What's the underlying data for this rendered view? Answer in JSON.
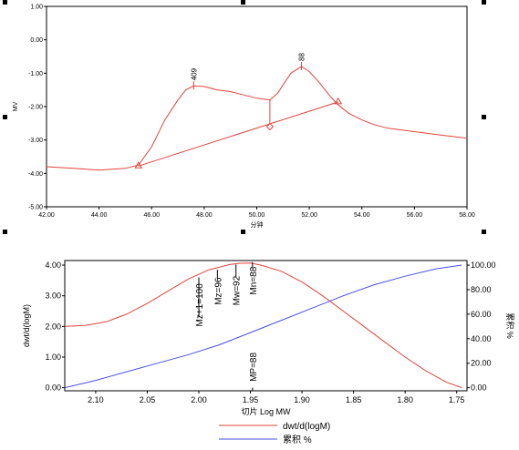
{
  "chart_data": [
    {
      "type": "line",
      "title": "",
      "xlabel": "分钟",
      "ylabel": "MV",
      "xlim": [
        42.0,
        58.0
      ],
      "ylim": [
        -5.0,
        1.0
      ],
      "x_ticks": [
        "42.00",
        "44.00",
        "46.00",
        "48.00",
        "50.00",
        "52.00",
        "54.00",
        "56.00",
        "58.00"
      ],
      "y_ticks": [
        "1.00",
        "0.00",
        "-1.00",
        "-2.00",
        "-3.00",
        "-4.00",
        "-5.00"
      ],
      "grid": false,
      "series": [
        {
          "color": "#e0443c",
          "x": [
            42.0,
            43.0,
            44.0,
            45.0,
            45.5,
            46.0,
            46.5,
            47.0,
            47.3,
            47.6,
            48.0,
            48.5,
            49.0,
            49.5,
            50.0,
            50.5,
            50.8,
            51.0,
            51.3,
            51.7,
            52.0,
            52.4,
            52.8,
            53.1,
            53.5,
            54.0,
            54.5,
            55.0,
            56.0,
            57.0,
            58.0
          ],
          "y": [
            -3.8,
            -3.85,
            -3.9,
            -3.85,
            -3.75,
            -3.2,
            -2.4,
            -1.8,
            -1.5,
            -1.38,
            -1.4,
            -1.5,
            -1.55,
            -1.65,
            -1.75,
            -1.8,
            -1.6,
            -1.35,
            -1.0,
            -0.8,
            -0.95,
            -1.3,
            -1.7,
            -1.95,
            -2.2,
            -2.4,
            -2.55,
            -2.65,
            -2.75,
            -2.85,
            -2.95
          ]
        }
      ],
      "baseline": {
        "x": [
          45.5,
          53.1
        ],
        "y": [
          -3.78,
          -1.86
        ]
      },
      "peak_labels": [
        {
          "text": "409",
          "x": 47.6,
          "y": -1.38
        },
        {
          "text": "88",
          "x": 51.7,
          "y": -0.8
        }
      ],
      "split_line_x": 50.5,
      "markers": [
        {
          "shape": "triangle",
          "x": 45.5,
          "y": -3.78
        },
        {
          "shape": "diamond",
          "x": 50.5,
          "y": -2.6
        },
        {
          "shape": "triangle",
          "x": 53.1,
          "y": -1.86
        }
      ]
    },
    {
      "type": "line",
      "title": "",
      "xlabel": "切片 Log MW",
      "ylabel": "dwt/d(logM)",
      "ylabel_right": "累积 %",
      "xlim": [
        2.13,
        1.74
      ],
      "ylim": [
        -0.1,
        4.15
      ],
      "ylim_right": [
        -2.5,
        103.75
      ],
      "x_ticks": [
        "2.10",
        "2.05",
        "2.00",
        "1.95",
        "1.90",
        "1.85",
        "1.80",
        "1.75"
      ],
      "y_ticks": [
        "4.00",
        "3.00",
        "2.00",
        "1.00",
        "0.00"
      ],
      "y_ticks_right": [
        "100.00",
        "80.00",
        "60.00",
        "40.00",
        "20.00",
        "0.00"
      ],
      "grid": false,
      "legend_position": "bottom",
      "series": [
        {
          "name": "dwt/d(logM)",
          "axis": "left",
          "color": "#e0443c",
          "x": [
            2.13,
            2.11,
            2.09,
            2.07,
            2.05,
            2.03,
            2.01,
            1.99,
            1.97,
            1.96,
            1.95,
            1.94,
            1.92,
            1.9,
            1.88,
            1.86,
            1.84,
            1.82,
            1.8,
            1.78,
            1.76,
            1.745
          ],
          "y": [
            2.0,
            2.03,
            2.15,
            2.4,
            2.75,
            3.15,
            3.55,
            3.85,
            4.02,
            4.06,
            4.07,
            4.0,
            3.8,
            3.45,
            3.0,
            2.5,
            2.0,
            1.5,
            1.0,
            0.55,
            0.18,
            0.0
          ]
        },
        {
          "name": "累积 %",
          "axis": "right",
          "color": "#4a4ee6",
          "x": [
            2.13,
            2.1,
            2.07,
            2.04,
            2.01,
            1.98,
            1.95,
            1.92,
            1.89,
            1.86,
            1.83,
            1.8,
            1.77,
            1.745
          ],
          "y": [
            0.0,
            6.0,
            13.0,
            20.0,
            27.0,
            35.0,
            45.0,
            55.0,
            65.0,
            75.0,
            84.0,
            91.0,
            97.0,
            100.0
          ]
        }
      ],
      "annotations": [
        {
          "text": "Mz+1=100",
          "x": 2.0,
          "tick_from": 3.6,
          "tick_to": 2.3,
          "text_top": 3.4
        },
        {
          "text": "Mz=96",
          "x": 1.982,
          "tick_from": 3.85,
          "tick_to": 3.55,
          "text_top": 3.6
        },
        {
          "text": "Mw=92",
          "x": 1.964,
          "tick_from": 4.02,
          "tick_to": 3.62,
          "text_top": 3.65
        },
        {
          "text": "Mn=88",
          "x": 1.948,
          "tick_from": 4.1,
          "tick_to": 3.92,
          "text_top": 3.95
        },
        {
          "text": "MP=88",
          "x": 1.948,
          "tick_from": 0.0,
          "tick_to": -0.1,
          "text_top": 1.15
        }
      ]
    }
  ]
}
